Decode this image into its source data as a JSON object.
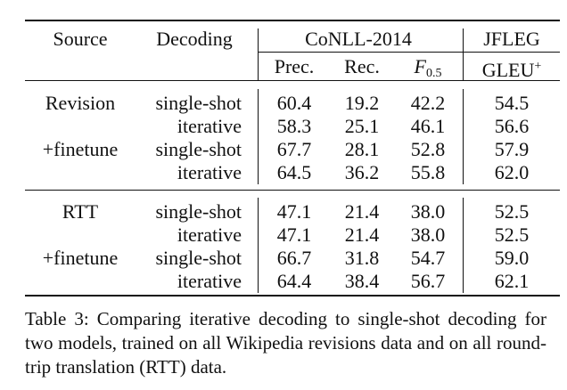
{
  "header": {
    "source": "Source",
    "decoding": "Decoding",
    "conll": "CoNLL-2014",
    "jfleg": "JFLEG",
    "prec": "Prec.",
    "rec": "Rec.",
    "f_main": "F",
    "f_sub": "0.5",
    "gleu_main": "GLEU",
    "gleu_sup": "+"
  },
  "rows": [
    {
      "source": "Revision",
      "decoding": "single-shot",
      "prec": "60.4",
      "rec": "19.2",
      "f": "42.2",
      "gleu": "54.5"
    },
    {
      "source": "",
      "decoding": "iterative",
      "prec": "58.3",
      "rec": "25.1",
      "f": "46.1",
      "gleu": "56.6"
    },
    {
      "source": "+finetune",
      "decoding": "single-shot",
      "prec": "67.7",
      "rec": "28.1",
      "f": "52.8",
      "gleu": "57.9"
    },
    {
      "source": "",
      "decoding": "iterative",
      "prec": "64.5",
      "rec": "36.2",
      "f": "55.8",
      "gleu": "62.0"
    },
    {
      "source": "RTT",
      "decoding": "single-shot",
      "prec": "47.1",
      "rec": "21.4",
      "f": "38.0",
      "gleu": "52.5"
    },
    {
      "source": "",
      "decoding": "iterative",
      "prec": "47.1",
      "rec": "21.4",
      "f": "38.0",
      "gleu": "52.5"
    },
    {
      "source": "+finetune",
      "decoding": "single-shot",
      "prec": "66.7",
      "rec": "31.8",
      "f": "54.7",
      "gleu": "59.0"
    },
    {
      "source": "",
      "decoding": "iterative",
      "prec": "64.4",
      "rec": "38.4",
      "f": "56.7",
      "gleu": "62.1"
    }
  ],
  "caption": {
    "label": "Table 3:",
    "text": "Comparing iterative decoding to single-shot decoding for two models, trained on all Wikipedia revisions data and on all round-trip translation (RTT) data."
  }
}
